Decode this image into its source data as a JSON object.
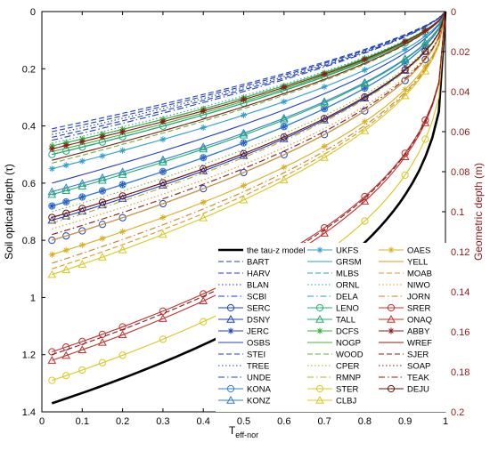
{
  "chart_data": {
    "type": "line",
    "xlabel": "T",
    "xlabel_sub": "eff-nor",
    "ylabel_left": "Soil optical depth (τ)",
    "ylabel_right": "Geometric depth (m)",
    "xlim": [
      0,
      1
    ],
    "ylim_left": [
      0,
      1.4
    ],
    "ylim_right": [
      0,
      0.2
    ],
    "y_inverted": true,
    "x_ticks": [
      "0",
      "0.1",
      "0.2",
      "0.3",
      "0.4",
      "0.5",
      "0.6",
      "0.7",
      "0.8",
      "0.9",
      "1"
    ],
    "y_ticks_left": [
      "0",
      "0.2",
      "0.4",
      "0.6",
      "0.8",
      "1",
      "1.2",
      "1.4"
    ],
    "y_ticks_right": [
      "0",
      "0.02",
      "0.04",
      "0.06",
      "0.08",
      "0.1",
      "0.12",
      "0.14",
      "0.16",
      "0.18",
      "0.2"
    ],
    "legend_position": "bottom-right",
    "x": [
      0.025,
      0.06,
      0.1,
      0.15,
      0.2,
      0.3,
      0.4,
      0.5,
      0.6,
      0.7,
      0.8,
      0.9,
      0.95,
      1.0
    ],
    "series": [
      {
        "name": "the tau-z model",
        "color": "#000000",
        "style": "solid",
        "marker": "none",
        "y0": 1.37,
        "k": 3.0
      },
      {
        "name": "BART",
        "color": "#1f3fbf",
        "style": "dashed",
        "marker": "none",
        "y0": 0.42,
        "k": 1.4
      },
      {
        "name": "HARV",
        "color": "#1f3fbf",
        "style": "dashed",
        "marker": "none",
        "y0": 0.44,
        "k": 1.4
      },
      {
        "name": "BLAN",
        "color": "#1f3fbf",
        "style": "dotted",
        "marker": "none",
        "y0": 0.47,
        "k": 1.5
      },
      {
        "name": "SCBI",
        "color": "#1f3fbf",
        "style": "dashdot",
        "marker": "none",
        "y0": 0.5,
        "k": 1.5
      },
      {
        "name": "SERC",
        "color": "#1f3fbf",
        "style": "solid",
        "marker": "circle",
        "y0": 0.8,
        "k": 1.9
      },
      {
        "name": "DSNY",
        "color": "#1f3fbf",
        "style": "solid",
        "marker": "triangle",
        "y0": 0.73,
        "k": 1.8
      },
      {
        "name": "JERC",
        "color": "#1f3fbf",
        "style": "solid",
        "marker": "star",
        "y0": 0.68,
        "k": 1.7
      },
      {
        "name": "OSBS",
        "color": "#1f3fbf",
        "style": "solid",
        "marker": "none",
        "y0": 0.6,
        "k": 1.6
      },
      {
        "name": "STEI",
        "color": "#1f3fbf",
        "style": "dashed",
        "marker": "none",
        "y0": 0.41,
        "k": 1.4
      },
      {
        "name": "TREE",
        "color": "#1f3fbf",
        "style": "dotted",
        "marker": "none",
        "y0": 0.43,
        "k": 1.4
      },
      {
        "name": "UNDE",
        "color": "#1f3fbf",
        "style": "dashdot",
        "marker": "none",
        "y0": 0.45,
        "k": 1.4
      },
      {
        "name": "KONA",
        "color": "#2f7fd0",
        "style": "solid",
        "marker": "circle",
        "y0": 0.68,
        "k": 1.7
      },
      {
        "name": "KONZ",
        "color": "#2f7fd0",
        "style": "solid",
        "marker": "triangle",
        "y0": 0.63,
        "k": 1.7
      },
      {
        "name": "UKFS",
        "color": "#2f9fd0",
        "style": "solid",
        "marker": "star",
        "y0": 0.55,
        "k": 1.6
      },
      {
        "name": "GRSM",
        "color": "#2fa0b0",
        "style": "solid",
        "marker": "none",
        "y0": 0.5,
        "k": 1.5
      },
      {
        "name": "MLBS",
        "color": "#2fa0b0",
        "style": "dashed",
        "marker": "none",
        "y0": 0.48,
        "k": 1.5
      },
      {
        "name": "ORNL",
        "color": "#2fa0b0",
        "style": "dotted",
        "marker": "none",
        "y0": 0.46,
        "k": 1.5
      },
      {
        "name": "DELA",
        "color": "#2fa0b0",
        "style": "dashdot",
        "marker": "none",
        "y0": 0.52,
        "k": 1.5
      },
      {
        "name": "LENO",
        "color": "#20b070",
        "style": "solid",
        "marker": "circle",
        "y0": 0.5,
        "k": 1.5
      },
      {
        "name": "TALL",
        "color": "#20b070",
        "style": "solid",
        "marker": "triangle",
        "y0": 0.64,
        "k": 1.7
      },
      {
        "name": "DCFS",
        "color": "#30b030",
        "style": "solid",
        "marker": "star",
        "y0": 0.47,
        "k": 1.5
      },
      {
        "name": "NOGP",
        "color": "#50b030",
        "style": "solid",
        "marker": "none",
        "y0": 0.49,
        "k": 1.5
      },
      {
        "name": "WOOD",
        "color": "#70b030",
        "style": "dashed",
        "marker": "none",
        "y0": 0.53,
        "k": 1.5
      },
      {
        "name": "CPER",
        "color": "#90b020",
        "style": "dotted",
        "marker": "none",
        "y0": 0.7,
        "k": 1.8
      },
      {
        "name": "RMNP",
        "color": "#b0b020",
        "style": "dashdot",
        "marker": "none",
        "y0": 0.74,
        "k": 1.8
      },
      {
        "name": "STER",
        "color": "#d8c820",
        "style": "solid",
        "marker": "circle",
        "y0": 1.29,
        "k": 2.8
      },
      {
        "name": "CLBJ",
        "color": "#d8c820",
        "style": "solid",
        "marker": "triangle",
        "y0": 0.92,
        "k": 2.0
      },
      {
        "name": "OAES",
        "color": "#d8b020",
        "style": "solid",
        "marker": "star",
        "y0": 0.85,
        "k": 2.0
      },
      {
        "name": "YELL",
        "color": "#d89a20",
        "style": "solid",
        "marker": "none",
        "y0": 0.8,
        "k": 1.9
      },
      {
        "name": "MOAB",
        "color": "#d89a20",
        "style": "dashed",
        "marker": "none",
        "y0": 0.9,
        "k": 2.0
      },
      {
        "name": "NIWO",
        "color": "#d89a20",
        "style": "dotted",
        "marker": "none",
        "y0": 0.76,
        "k": 1.9
      },
      {
        "name": "JORN",
        "color": "#d08020",
        "style": "dashdot",
        "marker": "none",
        "y0": 0.88,
        "k": 2.0
      },
      {
        "name": "SRER",
        "color": "#c0302a",
        "style": "solid",
        "marker": "circle",
        "y0": 1.19,
        "k": 2.6
      },
      {
        "name": "ONAQ",
        "color": "#c0302a",
        "style": "solid",
        "marker": "triangle",
        "y0": 1.22,
        "k": 2.6
      },
      {
        "name": "ABBY",
        "color": "#8b1a1a",
        "style": "solid",
        "marker": "star",
        "y0": 0.48,
        "k": 1.5
      },
      {
        "name": "WREF",
        "color": "#8b1a1a",
        "style": "solid",
        "marker": "none",
        "y0": 0.52,
        "k": 1.5
      },
      {
        "name": "SJER",
        "color": "#8b1a1a",
        "style": "dashed",
        "marker": "none",
        "y0": 1.2,
        "k": 2.6
      },
      {
        "name": "SOAP",
        "color": "#8b1a1a",
        "style": "dotted",
        "marker": "none",
        "y0": 0.72,
        "k": 1.8
      },
      {
        "name": "TEAK",
        "color": "#8b1a1a",
        "style": "dashdot",
        "marker": "none",
        "y0": 0.78,
        "k": 1.9
      },
      {
        "name": "DEJU",
        "color": "#6b1010",
        "style": "solid",
        "marker": "circle",
        "y0": 0.72,
        "k": 1.8
      }
    ]
  }
}
